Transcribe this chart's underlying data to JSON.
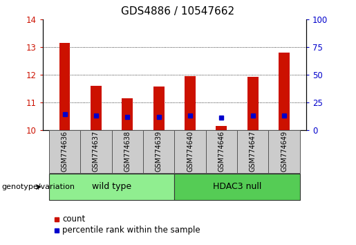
{
  "title": "GDS4886 / 10547662",
  "samples": [
    "GSM774636",
    "GSM774637",
    "GSM774638",
    "GSM774639",
    "GSM774640",
    "GSM774646",
    "GSM774647",
    "GSM774649"
  ],
  "red_bar_values": [
    13.15,
    11.6,
    11.15,
    11.58,
    11.95,
    10.13,
    11.92,
    12.8
  ],
  "blue_marker_values": [
    10.56,
    10.52,
    10.47,
    10.48,
    10.52,
    10.45,
    10.51,
    10.53
  ],
  "bar_bottom": 10.0,
  "ylim_left": [
    10,
    14
  ],
  "ylim_right": [
    0,
    100
  ],
  "yticks_left": [
    10,
    11,
    12,
    13,
    14
  ],
  "yticks_right": [
    0,
    25,
    50,
    75,
    100
  ],
  "red_color": "#cc1100",
  "blue_color": "#0000cc",
  "bar_width": 0.35,
  "groups": [
    {
      "label": "wild type",
      "indices": [
        0,
        1,
        2,
        3
      ],
      "color": "#90ee90"
    },
    {
      "label": "HDAC3 null",
      "indices": [
        4,
        5,
        6,
        7
      ],
      "color": "#55cc55"
    }
  ],
  "group_label": "genotype/variation",
  "legend_count": "count",
  "legend_percentile": "percentile rank within the sample",
  "tick_label_color_left": "#cc1100",
  "tick_label_color_right": "#0000cc",
  "title_fontsize": 11,
  "axis_fontsize": 8.5,
  "legend_fontsize": 8.5,
  "label_fontsize": 7,
  "group_fontsize": 9
}
